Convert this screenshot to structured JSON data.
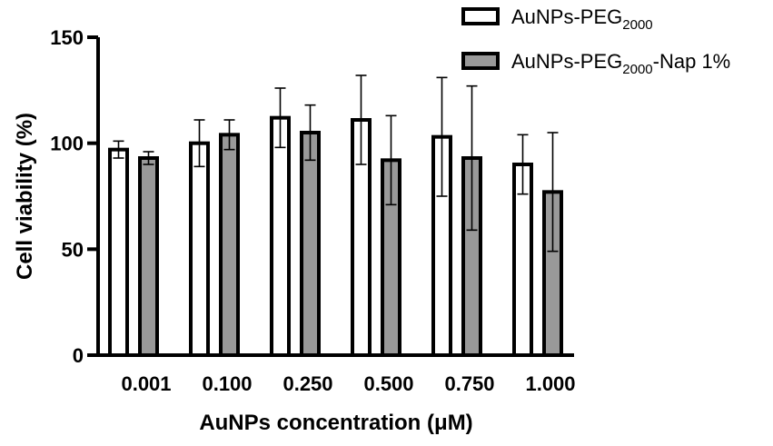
{
  "chart_data": {
    "type": "bar",
    "categories": [
      "0.001",
      "0.100",
      "0.250",
      "0.500",
      "0.750",
      "1.000"
    ],
    "series": [
      {
        "name": "AuNPs-PEG",
        "name_sub": "2000",
        "name_suffix": "",
        "fill": "#ffffff",
        "values": [
          97,
          100,
          112,
          111,
          103,
          90
        ],
        "errors": [
          4,
          11,
          14,
          21,
          28,
          14
        ]
      },
      {
        "name": "AuNPs-PEG",
        "name_sub": "2000",
        "name_suffix": "-Nap 1%",
        "fill": "#999999",
        "values": [
          93,
          104,
          105,
          92,
          93,
          77
        ],
        "errors": [
          3,
          7,
          13,
          21,
          34,
          28
        ]
      }
    ],
    "xlabel": "AuNPs concentration (μM)",
    "ylabel": "Cell viability (%)",
    "ylim": [
      0,
      150
    ],
    "yticks": [
      0,
      50,
      100,
      150
    ],
    "legend_position": "top-right",
    "grid": false
  }
}
